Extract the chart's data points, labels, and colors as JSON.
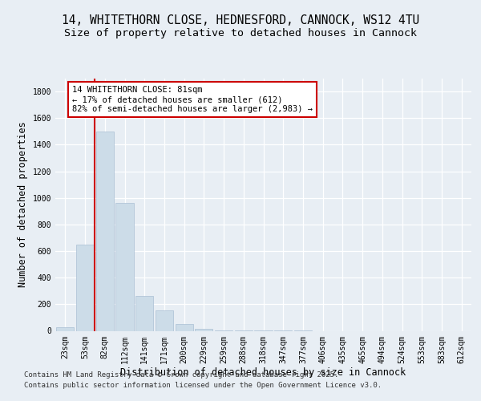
{
  "title_line1": "14, WHITETHORN CLOSE, HEDNESFORD, CANNOCK, WS12 4TU",
  "title_line2": "Size of property relative to detached houses in Cannock",
  "xlabel": "Distribution of detached houses by size in Cannock",
  "ylabel": "Number of detached properties",
  "categories": [
    "23sqm",
    "53sqm",
    "82sqm",
    "112sqm",
    "141sqm",
    "171sqm",
    "200sqm",
    "229sqm",
    "259sqm",
    "288sqm",
    "318sqm",
    "347sqm",
    "377sqm",
    "406sqm",
    "435sqm",
    "465sqm",
    "494sqm",
    "524sqm",
    "553sqm",
    "583sqm",
    "612sqm"
  ],
  "values": [
    25,
    650,
    1500,
    960,
    260,
    155,
    50,
    15,
    5,
    2,
    1,
    1,
    1,
    0,
    0,
    0,
    0,
    0,
    0,
    0,
    0
  ],
  "bar_color": "#ccdce8",
  "bar_edgecolor": "#aabfd4",
  "vline_color": "#cc0000",
  "annotation_box_text": "14 WHITETHORN CLOSE: 81sqm\n← 17% of detached houses are smaller (612)\n82% of semi-detached houses are larger (2,983) →",
  "annotation_box_color": "#cc0000",
  "ylim": [
    0,
    1900
  ],
  "yticks": [
    0,
    200,
    400,
    600,
    800,
    1000,
    1200,
    1400,
    1600,
    1800
  ],
  "footer_line1": "Contains HM Land Registry data © Crown copyright and database right 2025.",
  "footer_line2": "Contains public sector information licensed under the Open Government Licence v3.0.",
  "bg_color": "#e8eef4",
  "plot_bg_color": "#e8eef4",
  "title_fontsize": 10.5,
  "subtitle_fontsize": 9.5,
  "axis_label_fontsize": 8.5,
  "tick_fontsize": 7,
  "annot_fontsize": 7.5,
  "footer_fontsize": 6.5
}
